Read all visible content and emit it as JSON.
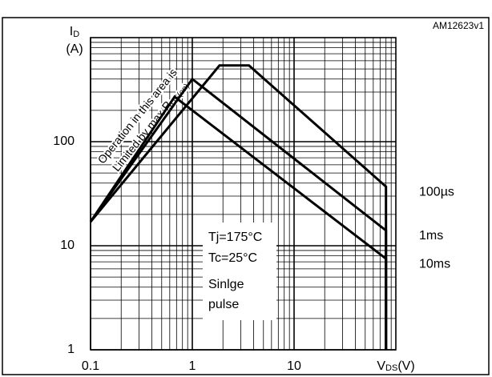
{
  "chart_data": {
    "type": "line",
    "code": "AM12623v1",
    "y_label": {
      "main": "I",
      "sub": "D",
      "unit": "(A)"
    },
    "x_label": {
      "main": "V",
      "sub": "DS",
      "unit": "(V)"
    },
    "log_x": true,
    "log_y": true,
    "grid": true,
    "xlim": [
      0.1,
      100
    ],
    "ylim": [
      1,
      1000
    ],
    "xticks": [
      0.1,
      1,
      10
    ],
    "yticks": [
      1,
      10,
      100
    ],
    "xminor": [
      0.2,
      0.3,
      0.4,
      0.5,
      0.6,
      0.7,
      0.8,
      0.9,
      2,
      3,
      4,
      5,
      6,
      7,
      8,
      9,
      20,
      30,
      40,
      50,
      60,
      70,
      80,
      90
    ],
    "yminor": [
      2,
      3,
      4,
      5,
      6,
      7,
      8,
      9,
      20,
      30,
      40,
      50,
      60,
      70,
      80,
      90,
      200,
      300,
      400,
      500,
      600,
      700,
      800,
      900
    ],
    "series": [
      {
        "name": "100µs",
        "color": "#000000",
        "x": [
          0.1,
          1.85,
          3.6,
          80,
          80
        ],
        "values": [
          17,
          540,
          540,
          37,
          1
        ]
      },
      {
        "name": "1ms",
        "color": "#000000",
        "x": [
          0.1,
          1.0,
          80,
          80
        ],
        "values": [
          17,
          400,
          14,
          1
        ]
      },
      {
        "name": "10ms",
        "color": "#000000",
        "x": [
          0.1,
          0.67,
          80,
          80
        ],
        "values": [
          17,
          270,
          7.5,
          1
        ]
      }
    ],
    "region_note": {
      "line1": "Operation in this area is",
      "line2": "Limited by max R",
      "line2_sub": "DS(on)"
    },
    "conditions": [
      "Tj=175°C",
      "Tc=25°C",
      "Sinlge",
      "pulse"
    ]
  }
}
